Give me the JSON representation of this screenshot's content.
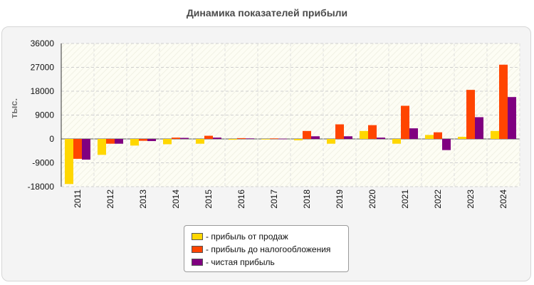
{
  "chart_data": {
    "type": "bar",
    "title": "Динамика показателей прибыли",
    "ylabel": "тыс.",
    "ylim": [
      -18000,
      36000
    ],
    "yticks": [
      "36000",
      "27000",
      "18000",
      "9000",
      "0",
      "-9000",
      "-18000"
    ],
    "categories": [
      "2011",
      "2012",
      "2013",
      "2014",
      "2015",
      "2016",
      "2017",
      "2018",
      "2019",
      "2020",
      "2021",
      "2022",
      "2023",
      "2024"
    ],
    "series": [
      {
        "name": "- прибыль от продаж",
        "color": "#ffd700",
        "values": [
          -17000,
          -6000,
          -2500,
          -2000,
          -1800,
          -300,
          -200,
          -500,
          -1800,
          3000,
          -1800,
          1500,
          800,
          3000
        ]
      },
      {
        "name": "- прибыль до налогообложения",
        "color": "#ff4500",
        "values": [
          -7500,
          -1800,
          -700,
          500,
          1200,
          300,
          200,
          3000,
          5500,
          5200,
          12500,
          2500,
          18500,
          28000
        ]
      },
      {
        "name": "- чистая прибыль",
        "color": "#800080",
        "values": [
          -7800,
          -1800,
          -800,
          400,
          500,
          200,
          100,
          1000,
          1000,
          500,
          4000,
          -4200,
          8200,
          15800
        ]
      }
    ],
    "grid": true,
    "legend_position": "bottom-center"
  }
}
